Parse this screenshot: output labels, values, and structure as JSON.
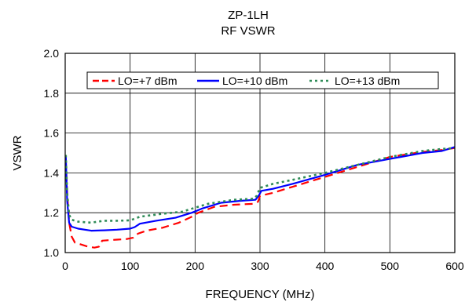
{
  "chart_data": {
    "type": "line",
    "title": "ZP-1LH",
    "subtitle": "RF VSWR",
    "xlabel": "FREQUENCY (MHz)",
    "ylabel": "VSWR",
    "xlim": [
      0,
      600
    ],
    "ylim": [
      1.0,
      2.0
    ],
    "x_ticks": [
      0,
      100,
      200,
      300,
      400,
      500,
      600
    ],
    "y_ticks": [
      1.0,
      1.2,
      1.4,
      1.6,
      1.8,
      2.0
    ],
    "x_tick_labels": [
      "0",
      "100",
      "200",
      "300",
      "400",
      "500",
      "600"
    ],
    "y_tick_labels": [
      "1.0",
      "1.2",
      "1.4",
      "1.6",
      "1.8",
      "2.0"
    ],
    "grid": true,
    "legend_position": "top",
    "series": [
      {
        "name": "LO=+7 dBm",
        "color": "#ff0000",
        "dash": "dashed",
        "points": [
          [
            1,
            1.46
          ],
          [
            3,
            1.3
          ],
          [
            6,
            1.15
          ],
          [
            10,
            1.08
          ],
          [
            15,
            1.05
          ],
          [
            25,
            1.04
          ],
          [
            35,
            1.03
          ],
          [
            45,
            1.025
          ],
          [
            52,
            1.03
          ],
          [
            57,
            1.06
          ],
          [
            65,
            1.062
          ],
          [
            80,
            1.065
          ],
          [
            95,
            1.068
          ],
          [
            105,
            1.075
          ],
          [
            112,
            1.095
          ],
          [
            125,
            1.11
          ],
          [
            150,
            1.125
          ],
          [
            175,
            1.15
          ],
          [
            195,
            1.18
          ],
          [
            205,
            1.2
          ],
          [
            230,
            1.23
          ],
          [
            260,
            1.24
          ],
          [
            290,
            1.245
          ],
          [
            297,
            1.255
          ],
          [
            300,
            1.285
          ],
          [
            320,
            1.3
          ],
          [
            350,
            1.33
          ],
          [
            400,
            1.38
          ],
          [
            450,
            1.43
          ],
          [
            500,
            1.48
          ],
          [
            550,
            1.505
          ],
          [
            580,
            1.515
          ],
          [
            600,
            1.525
          ]
        ]
      },
      {
        "name": "LO=+10 dBm",
        "color": "#0000ff",
        "dash": "solid",
        "points": [
          [
            1,
            1.48
          ],
          [
            3,
            1.26
          ],
          [
            6,
            1.15
          ],
          [
            10,
            1.13
          ],
          [
            20,
            1.12
          ],
          [
            40,
            1.11
          ],
          [
            60,
            1.112
          ],
          [
            80,
            1.115
          ],
          [
            100,
            1.12
          ],
          [
            107,
            1.128
          ],
          [
            115,
            1.145
          ],
          [
            140,
            1.16
          ],
          [
            170,
            1.175
          ],
          [
            195,
            1.2
          ],
          [
            210,
            1.22
          ],
          [
            240,
            1.25
          ],
          [
            270,
            1.26
          ],
          [
            293,
            1.265
          ],
          [
            298,
            1.285
          ],
          [
            302,
            1.31
          ],
          [
            320,
            1.32
          ],
          [
            350,
            1.345
          ],
          [
            400,
            1.39
          ],
          [
            450,
            1.44
          ],
          [
            500,
            1.47
          ],
          [
            550,
            1.5
          ],
          [
            580,
            1.51
          ],
          [
            600,
            1.53
          ]
        ]
      },
      {
        "name": "LO=+13 dBm",
        "color": "#2e8b57",
        "dash": "dotted",
        "points": [
          [
            1,
            1.49
          ],
          [
            3,
            1.3
          ],
          [
            6,
            1.19
          ],
          [
            10,
            1.165
          ],
          [
            20,
            1.155
          ],
          [
            40,
            1.15
          ],
          [
            50,
            1.155
          ],
          [
            60,
            1.16
          ],
          [
            80,
            1.16
          ],
          [
            100,
            1.162
          ],
          [
            107,
            1.17
          ],
          [
            115,
            1.18
          ],
          [
            150,
            1.195
          ],
          [
            180,
            1.205
          ],
          [
            200,
            1.225
          ],
          [
            220,
            1.245
          ],
          [
            260,
            1.265
          ],
          [
            290,
            1.27
          ],
          [
            295,
            1.285
          ],
          [
            300,
            1.325
          ],
          [
            320,
            1.345
          ],
          [
            350,
            1.365
          ],
          [
            400,
            1.4
          ],
          [
            450,
            1.44
          ],
          [
            500,
            1.48
          ],
          [
            550,
            1.51
          ],
          [
            580,
            1.52
          ],
          [
            600,
            1.525
          ]
        ]
      }
    ]
  }
}
